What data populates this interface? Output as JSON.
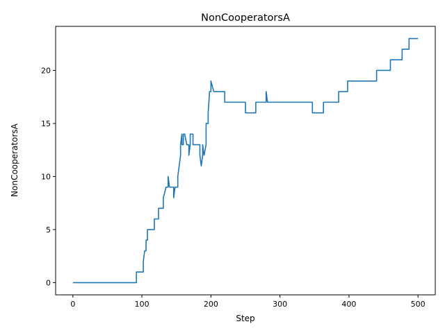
{
  "chart_data": {
    "type": "line",
    "title": "NonCooperatorsA",
    "xlabel": "Step",
    "ylabel": "NonCooperatorsA",
    "xlim": [
      -25,
      525
    ],
    "ylim": [
      -1.15,
      24.15
    ],
    "xticks": [
      0,
      100,
      200,
      300,
      400,
      500
    ],
    "yticks": [
      0,
      5,
      10,
      15,
      20
    ],
    "grid": false,
    "colors": {
      "line": "#1f77b4"
    },
    "series": [
      {
        "x": [
          0,
          92,
          92,
          102,
          102,
          104,
          104,
          106,
          106,
          108,
          108,
          110,
          110,
          118,
          118,
          124,
          124,
          131,
          131,
          135,
          135,
          138,
          138,
          140,
          140,
          146,
          146,
          148,
          148,
          152,
          152,
          154,
          154,
          156,
          156,
          158,
          158,
          160,
          160,
          162,
          162,
          165,
          165,
          168,
          168,
          170,
          170,
          172,
          172,
          174,
          174,
          177,
          177,
          184,
          184,
          186,
          186,
          188,
          188,
          190,
          190,
          193,
          193,
          196,
          196,
          198,
          198,
          200,
          200,
          204,
          204,
          206,
          206,
          220,
          220,
          250,
          250,
          265,
          265,
          280,
          280,
          282,
          282,
          347,
          347,
          363,
          363,
          385,
          385,
          398,
          398,
          440,
          440,
          460,
          460,
          477,
          477,
          487,
          487,
          500
        ],
        "y": [
          0,
          0,
          1,
          1,
          2,
          3,
          3,
          3,
          4,
          4,
          5,
          5,
          5,
          5,
          6,
          6,
          7,
          7,
          8,
          9,
          9,
          9,
          10,
          9,
          9,
          9,
          8,
          9,
          9,
          9,
          10,
          11,
          11,
          12,
          13,
          14,
          13,
          13,
          14,
          14,
          14,
          13,
          13,
          13,
          12,
          13,
          14,
          14,
          14,
          14,
          13,
          13,
          13,
          13,
          12,
          11,
          11,
          12,
          13,
          12,
          12,
          13,
          15,
          15,
          16,
          18,
          18,
          18,
          19,
          18,
          18,
          18,
          18,
          18,
          17,
          17,
          16,
          16,
          17,
          17,
          18,
          17,
          17,
          17,
          16,
          16,
          17,
          17,
          18,
          18,
          19,
          19,
          20,
          20,
          21,
          21,
          22,
          22,
          23,
          23
        ]
      }
    ]
  }
}
